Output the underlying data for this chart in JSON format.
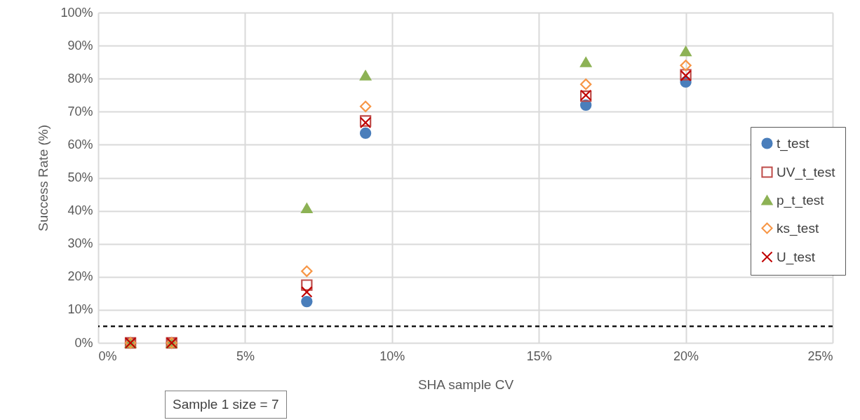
{
  "chart_data": {
    "type": "scatter",
    "xlabel": "SHA sample CV",
    "ylabel": "Success Rate (%)",
    "x": [
      1.1,
      2.5,
      7.1,
      9.1,
      16.6,
      20.0
    ],
    "series": [
      {
        "name": "t_test",
        "color": "#4a7ebb",
        "marker": "circle",
        "values": [
          0,
          0,
          12.5,
          63.5,
          72,
          79
        ]
      },
      {
        "name": "UV_t_test",
        "color": "#be4b48",
        "marker": "square",
        "values": [
          0,
          0,
          17.5,
          67.2,
          74.7,
          81.2
        ]
      },
      {
        "name": "p_t_test",
        "color": "#8db255",
        "marker": "triangle",
        "values": [
          0,
          0,
          40.8,
          81,
          85,
          88.3
        ]
      },
      {
        "name": "ks_test",
        "color": "#f79646",
        "marker": "diamond",
        "values": [
          0,
          0,
          21.7,
          71.6,
          78.3,
          84
        ]
      },
      {
        "name": "U_test",
        "color": "#c00000",
        "marker": "cross",
        "values": [
          0,
          0,
          15.4,
          66.7,
          75,
          80.9
        ]
      }
    ],
    "xlim": [
      0,
      25
    ],
    "xticks": [
      {
        "value": 0,
        "label": "0%"
      },
      {
        "value": 5,
        "label": "5%"
      },
      {
        "value": 10,
        "label": "10%"
      },
      {
        "value": 15,
        "label": "15%"
      },
      {
        "value": 20,
        "label": "20%"
      },
      {
        "value": 25,
        "label": "25%"
      }
    ],
    "ylim": [
      0,
      100
    ],
    "yticks": [
      {
        "value": 0,
        "label": "0%"
      },
      {
        "value": 10,
        "label": "10%"
      },
      {
        "value": 20,
        "label": "20%"
      },
      {
        "value": 30,
        "label": "30%"
      },
      {
        "value": 40,
        "label": "40%"
      },
      {
        "value": 50,
        "label": "50%"
      },
      {
        "value": 60,
        "label": "60%"
      },
      {
        "value": 70,
        "label": "70%"
      },
      {
        "value": 80,
        "label": "80%"
      },
      {
        "value": 90,
        "label": "90%"
      },
      {
        "value": 100,
        "label": "100%"
      }
    ],
    "ref_lines": [
      {
        "axis": "y",
        "value": 5,
        "color": "#000000",
        "line_style": "dashed"
      }
    ],
    "grid": true,
    "legend": "right",
    "annotations": [
      "Sample 1 size = 7"
    ]
  }
}
